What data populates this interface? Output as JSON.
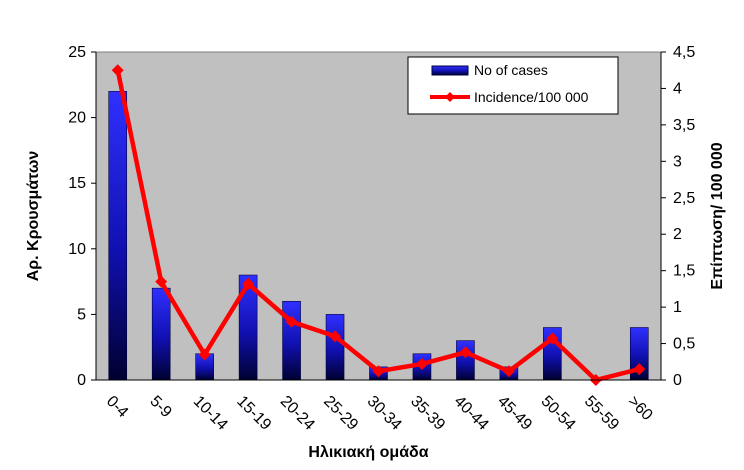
{
  "chart_data": {
    "type": "bar",
    "categories": [
      "0-4",
      "5-9",
      "10-14",
      "15-19",
      "20-24",
      "25-29",
      "30-34",
      "35-39",
      "40-44",
      "45-49",
      "50-54",
      "55-59",
      ">60"
    ],
    "series": [
      {
        "name": "No of cases",
        "type": "bar",
        "axis": "left",
        "color": "#1010d0",
        "values": [
          22,
          7,
          2,
          8,
          6,
          5,
          1,
          2,
          3,
          1,
          4,
          0,
          4
        ]
      },
      {
        "name": "Incidence/100 000",
        "type": "line",
        "axis": "right",
        "color": "#ff0000",
        "values": [
          4.25,
          1.35,
          0.35,
          1.32,
          0.8,
          0.6,
          0.12,
          0.22,
          0.38,
          0.12,
          0.57,
          0.0,
          0.15
        ]
      }
    ],
    "xlabel": "Ηλικιακή ομάδα",
    "ylabel": "Αρ. Κρουσμάτων",
    "y2label": "Επίπτωση/ 100 000",
    "ylim": [
      0,
      25
    ],
    "y2lim": [
      0,
      4.5
    ],
    "yticks": [
      "0",
      "5",
      "10",
      "15",
      "20",
      "25"
    ],
    "y2ticks": [
      "0",
      "0,5",
      "1",
      "1,5",
      "2",
      "2,5",
      "3",
      "3,5",
      "4",
      "4,5"
    ],
    "plot_background": "#c0c0c0",
    "grid": false,
    "legend_position": "top-right"
  }
}
